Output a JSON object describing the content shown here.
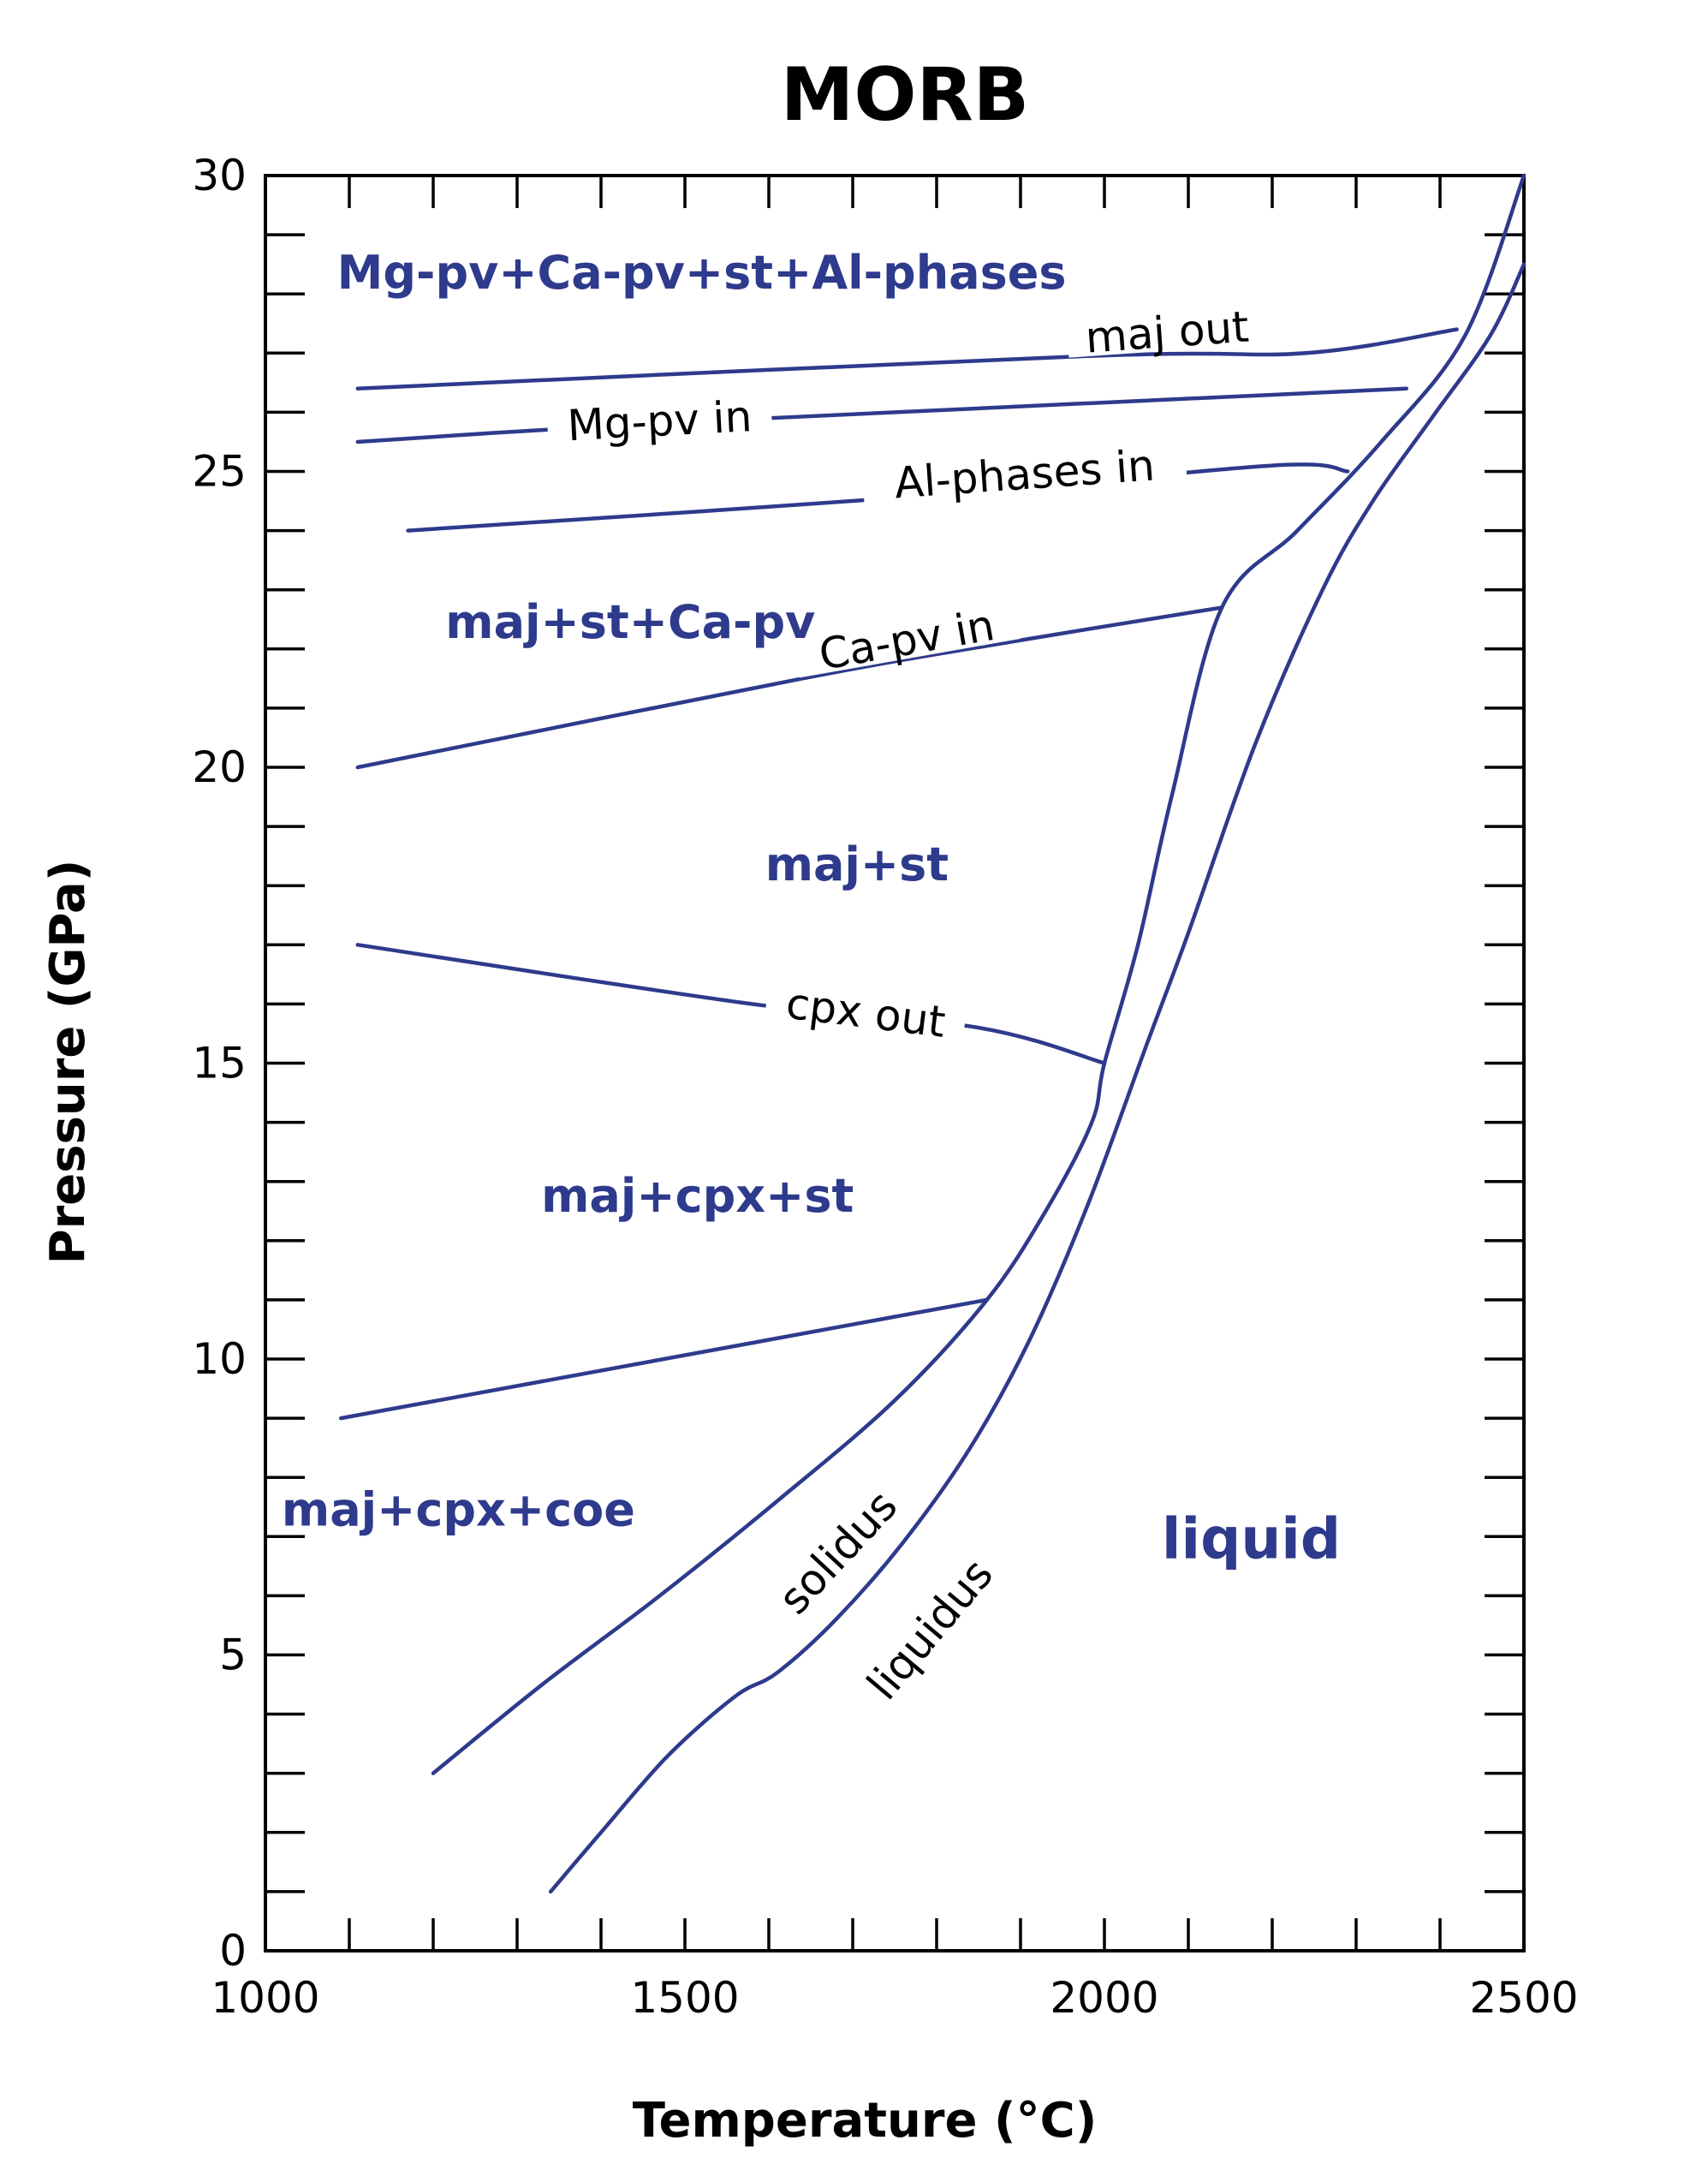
{
  "chart_data": {
    "type": "line",
    "title": "MORB",
    "xlabel": "Temperature (°C)",
    "ylabel": "Pressure (GPa)",
    "xlim": [
      1000,
      2500
    ],
    "ylim": [
      0,
      30
    ],
    "x_ticks": [
      "1000",
      "1500",
      "2000",
      "2500"
    ],
    "y_ticks": [
      "0",
      "5",
      "10",
      "15",
      "20",
      "25",
      "30"
    ],
    "grid": false,
    "colors": {
      "curve": "#2e3a8c",
      "field_label": "#2e3a8c"
    },
    "series": [
      {
        "name": "solidus",
        "x": [
          1200,
          1330,
          1470,
          1610,
          1750,
          1860,
          1930,
          1985,
          2000,
          2040,
          2080,
          2140,
          2230,
          2330,
          2430,
          2500
        ],
        "y": [
          3.0,
          4.5,
          6.0,
          7.6,
          9.3,
          11.0,
          12.5,
          14.0,
          15.0,
          17.0,
          19.5,
          22.7,
          24.0,
          25.5,
          27.3,
          30.0
        ]
      },
      {
        "name": "liquidus",
        "x": [
          1340,
          1400,
          1480,
          1560,
          1610,
          1680,
          1760,
          1840,
          1910,
          1980,
          2050,
          2100,
          2180,
          2260,
          2320,
          2390,
          2460,
          2500
        ],
        "y": [
          1.0,
          2.0,
          3.3,
          4.3,
          4.7,
          5.6,
          6.9,
          8.5,
          10.3,
          12.6,
          15.3,
          17.2,
          20.4,
          23.0,
          24.5,
          25.9,
          27.3,
          28.5
        ]
      },
      {
        "name": "maj out",
        "x": [
          1110,
          1980,
          2240,
          2420
        ],
        "y": [
          26.4,
          26.95,
          27.0,
          27.4
        ]
      },
      {
        "name": "Mg-pv in",
        "x": [
          1110,
          1330,
          1600,
          2360
        ],
        "y": [
          25.5,
          25.7,
          25.9,
          26.4
        ]
      },
      {
        "name": "Al-phases in",
        "x": [
          1170,
          1800,
          2200,
          2290
        ],
        "y": [
          24.0,
          24.6,
          25.1,
          25.0
        ]
      },
      {
        "name": "Ca-pv in",
        "x": [
          1110,
          1640,
          1880,
          2140
        ],
        "y": [
          20.0,
          21.5,
          22.1,
          22.7
        ]
      },
      {
        "name": "cpx out",
        "x": [
          1110,
          1580,
          1850,
          2000
        ],
        "y": [
          17.0,
          16.0,
          15.6,
          15.0
        ]
      },
      {
        "name": "",
        "x": [
          1090,
          1860
        ],
        "y": [
          9.0,
          11.0
        ]
      }
    ],
    "line_labels": [
      {
        "text": "maj out",
        "x": 2075,
        "y": 27.3,
        "angle": -4
      },
      {
        "text": "Mg-pv in",
        "x": 1470,
        "y": 25.8,
        "angle": -3
      },
      {
        "text": "Al-phases in",
        "x": 1905,
        "y": 24.9,
        "angle": -4
      },
      {
        "text": "Ca-pv in",
        "x": 1765,
        "y": 22.1,
        "angle": -10
      },
      {
        "text": "cpx out",
        "x": 1715,
        "y": 15.8,
        "angle": 7
      },
      {
        "text": "solidus",
        "x": 1685,
        "y": 6.7,
        "angle": -47
      },
      {
        "text": "liquidus",
        "x": 1795,
        "y": 5.4,
        "angle": -50
      }
    ],
    "field_labels": [
      {
        "text": "Mg-pv+Ca-pv+st+Al-phases",
        "x": 1520,
        "y": 28.3,
        "size": 54
      },
      {
        "text": "maj+st+Ca-pv",
        "x": 1435,
        "y": 22.4,
        "size": 54
      },
      {
        "text": "maj+st",
        "x": 1705,
        "y": 18.3,
        "size": 54
      },
      {
        "text": "maj+cpx+st",
        "x": 1515,
        "y": 12.7,
        "size": 54
      },
      {
        "text": "maj+cpx+coe",
        "x": 1230,
        "y": 7.4,
        "size": 54
      },
      {
        "text": "liquid",
        "x": 2175,
        "y": 6.9,
        "size": 66
      }
    ]
  }
}
